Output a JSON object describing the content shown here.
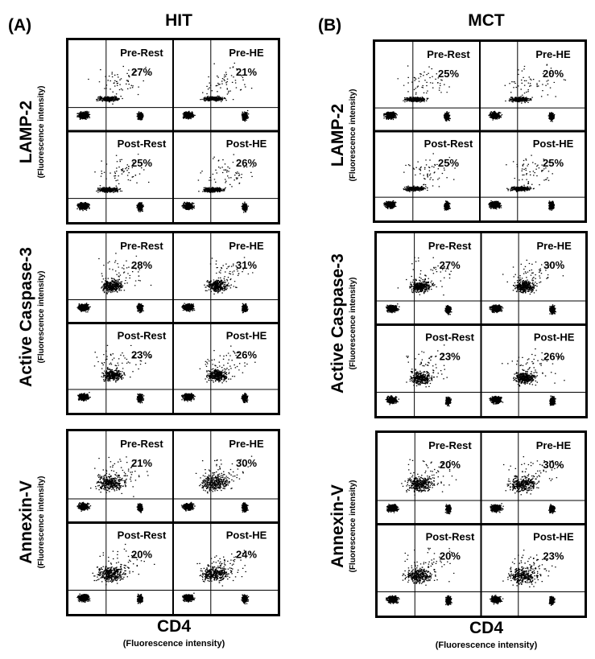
{
  "figure": {
    "panel_a": {
      "letter": "(A)",
      "title": "HIT"
    },
    "panel_b": {
      "letter": "(B)",
      "title": "MCT"
    },
    "y_sub": "(Fluorescence intensity)",
    "x_main": "CD4",
    "x_sub": "(Fluorescence intensity)"
  },
  "chart_data": [
    {
      "type": "scatter",
      "panel": "(A)",
      "title": "HIT",
      "xlabel": "CD4 (Fluorescence intensity)",
      "rows": [
        {
          "marker": "LAMP-2",
          "ylabel": "LAMP-2 (Fluorescence intensity)",
          "subplots": [
            {
              "label": "Pre-Rest",
              "percent": "27%"
            },
            {
              "label": "Pre-HE",
              "percent": "21%"
            },
            {
              "label": "Post-Rest",
              "percent": "25%"
            },
            {
              "label": "Post-HE",
              "percent": "26%"
            }
          ]
        },
        {
          "marker": "Active Caspase-3",
          "ylabel": "Active Caspase-3 (Fluorescence intensity)",
          "subplots": [
            {
              "label": "Pre-Rest",
              "percent": "28%"
            },
            {
              "label": "Pre-HE",
              "percent": "31%"
            },
            {
              "label": "Post-Rest",
              "percent": "23%"
            },
            {
              "label": "Post-HE",
              "percent": "26%"
            }
          ]
        },
        {
          "marker": "Annexin-V",
          "ylabel": "Annexin-V (Fluorescence intensity)",
          "subplots": [
            {
              "label": "Pre-Rest",
              "percent": "21%"
            },
            {
              "label": "Pre-HE",
              "percent": "30%"
            },
            {
              "label": "Post-Rest",
              "percent": "20%"
            },
            {
              "label": "Post-HE",
              "percent": "24%"
            }
          ]
        }
      ]
    },
    {
      "type": "scatter",
      "panel": "(B)",
      "title": "MCT",
      "xlabel": "CD4 (Fluorescence intensity)",
      "rows": [
        {
          "marker": "LAMP-2",
          "ylabel": "LAMP-2 (Fluorescence intensity)",
          "subplots": [
            {
              "label": "Pre-Rest",
              "percent": "25%"
            },
            {
              "label": "Pre-HE",
              "percent": "20%"
            },
            {
              "label": "Post-Rest",
              "percent": "25%"
            },
            {
              "label": "Post-HE",
              "percent": "25%"
            }
          ]
        },
        {
          "marker": "Active Caspase-3",
          "ylabel": "Active Caspase-3 (Fluorescence intensity)",
          "subplots": [
            {
              "label": "Pre-Rest",
              "percent": "27%"
            },
            {
              "label": "Pre-HE",
              "percent": "30%"
            },
            {
              "label": "Post-Rest",
              "percent": "23%"
            },
            {
              "label": "Post-HE",
              "percent": "26%"
            }
          ]
        },
        {
          "marker": "Annexin-V",
          "ylabel": "Annexin-V (Fluorescence intensity)",
          "subplots": [
            {
              "label": "Pre-Rest",
              "percent": "20%"
            },
            {
              "label": "Pre-HE",
              "percent": "30%"
            },
            {
              "label": "Post-Rest",
              "percent": "20%"
            },
            {
              "label": "Post-HE",
              "percent": "23%"
            }
          ]
        }
      ]
    }
  ]
}
